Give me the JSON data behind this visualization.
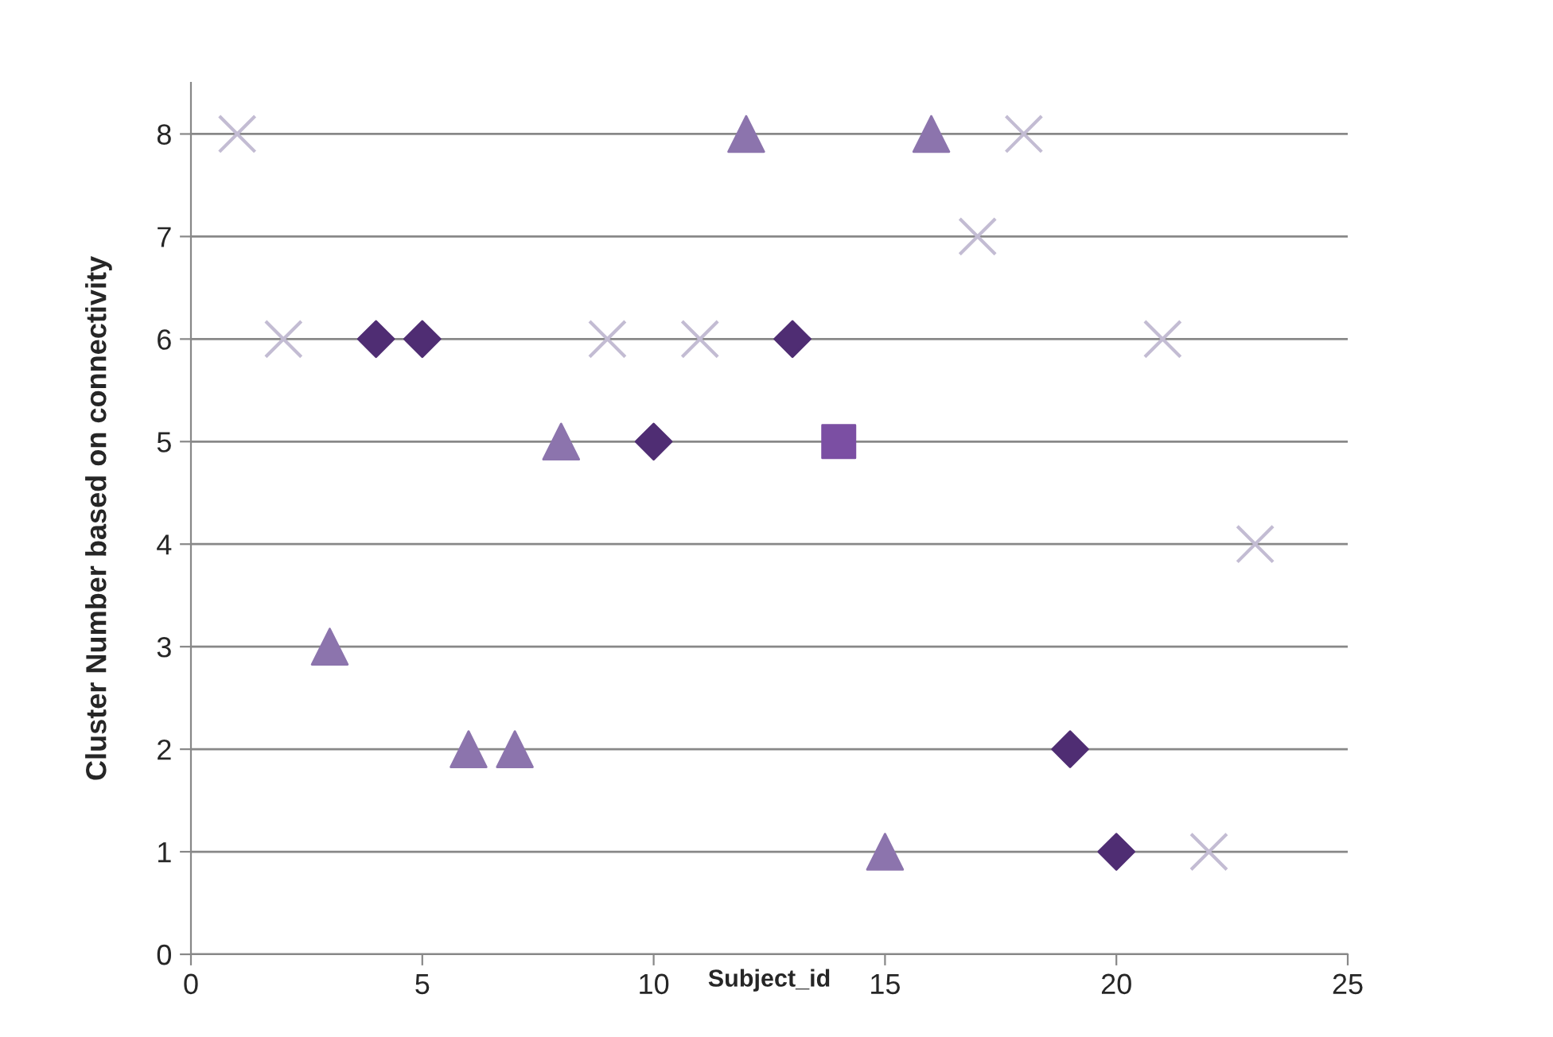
{
  "chart_data": {
    "type": "scatter",
    "xlabel": "Subject_id",
    "ylabel": "Cluster Number based on connectivity",
    "xlim": [
      0,
      25
    ],
    "xticks": [
      0,
      5,
      10,
      15,
      20,
      25
    ],
    "ylim": [
      0,
      8.5
    ],
    "yticks": [
      0,
      1,
      2,
      3,
      4,
      5,
      6,
      7,
      8
    ],
    "grid": "y",
    "legend": false,
    "series": [
      {
        "marker": "diamond",
        "color": "#4f2d73",
        "x": [
          4,
          5,
          10,
          13,
          19,
          20
        ],
        "values": [
          6,
          6,
          5,
          6,
          2,
          1
        ]
      },
      {
        "marker": "square",
        "color": "#7b4fa3",
        "x": [
          14
        ],
        "values": [
          5
        ]
      },
      {
        "marker": "triangle",
        "color": "#8c74ad",
        "x": [
          3,
          6,
          7,
          8,
          12,
          15,
          16
        ],
        "values": [
          3,
          2,
          2,
          5,
          8,
          1,
          8
        ]
      },
      {
        "marker": "cross",
        "color": "#c3bcd3",
        "x": [
          1,
          2,
          9,
          11,
          17,
          18,
          21,
          22,
          23
        ],
        "values": [
          8,
          6,
          6,
          6,
          7,
          8,
          6,
          1,
          4
        ]
      }
    ]
  }
}
